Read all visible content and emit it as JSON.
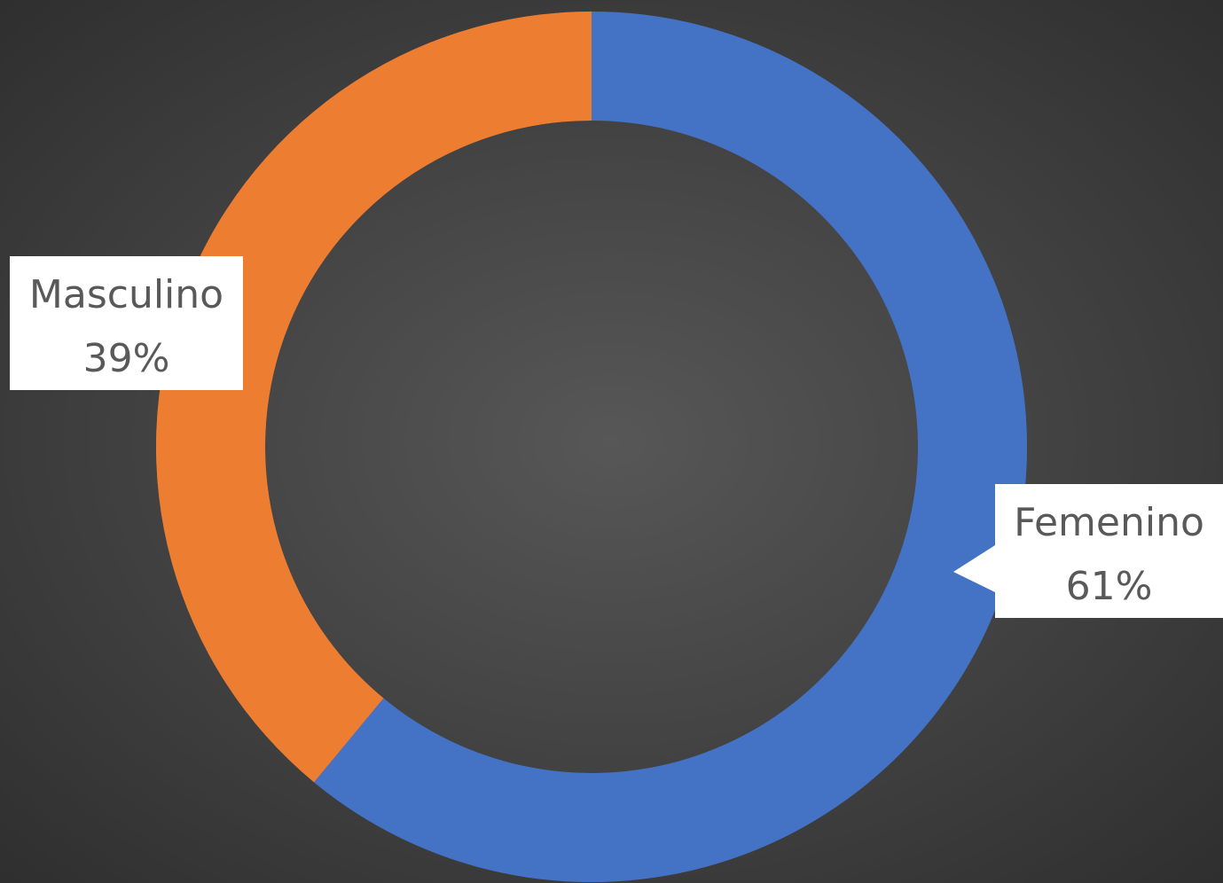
{
  "chart_data": {
    "type": "donut",
    "categories": [
      "Femenino",
      "Masculino"
    ],
    "values": [
      61,
      39
    ],
    "value_labels": [
      "61%",
      "39%"
    ],
    "colors": [
      "#4472c4",
      "#ed7d31"
    ]
  }
}
